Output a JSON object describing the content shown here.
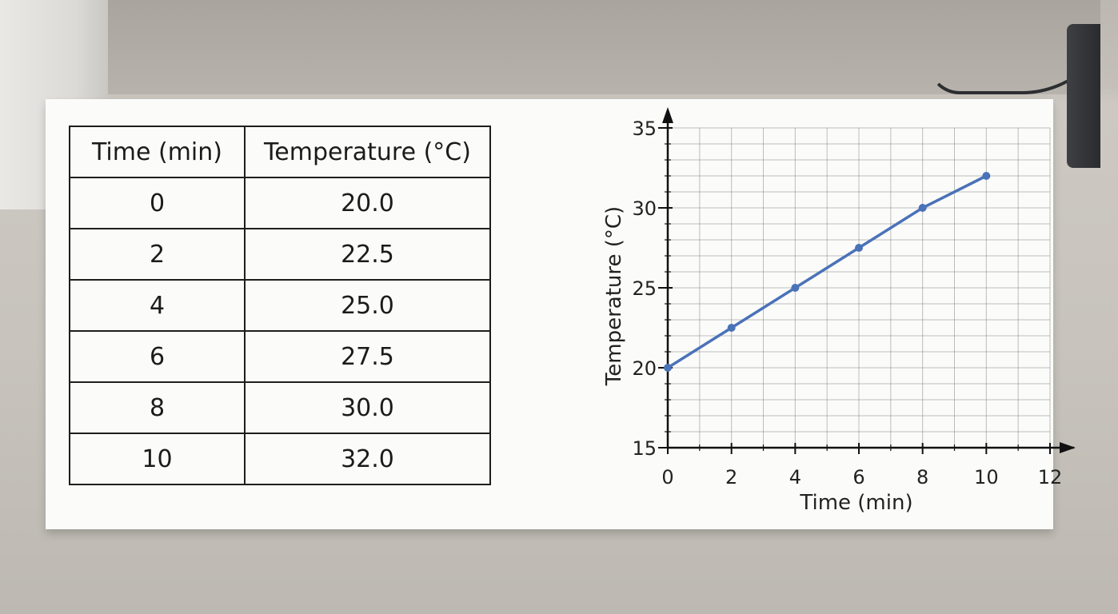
{
  "table": {
    "headers": [
      "Time (min)",
      "Temperature (°C)"
    ],
    "rows": [
      [
        "0",
        "20.0"
      ],
      [
        "2",
        "22.5"
      ],
      [
        "4",
        "25.0"
      ],
      [
        "6",
        "27.5"
      ],
      [
        "8",
        "30.0"
      ],
      [
        "10",
        "32.0"
      ]
    ]
  },
  "chart_data": {
    "type": "line",
    "title": "",
    "xlabel": "Time (min)",
    "ylabel": "Temperature (°C)",
    "x": [
      0,
      2,
      4,
      6,
      8,
      10
    ],
    "series": [
      {
        "values": [
          20.0,
          22.5,
          25.0,
          27.5,
          30.0,
          32.0
        ]
      }
    ],
    "xlim": [
      0,
      12
    ],
    "ylim": [
      15,
      35
    ],
    "x_ticks": [
      0,
      2,
      4,
      6,
      8,
      10,
      12
    ],
    "y_ticks": [
      15,
      20,
      25,
      30,
      35
    ],
    "grid": true,
    "line_color": "#4a72b8",
    "grid_color": "#8a8a8a"
  }
}
